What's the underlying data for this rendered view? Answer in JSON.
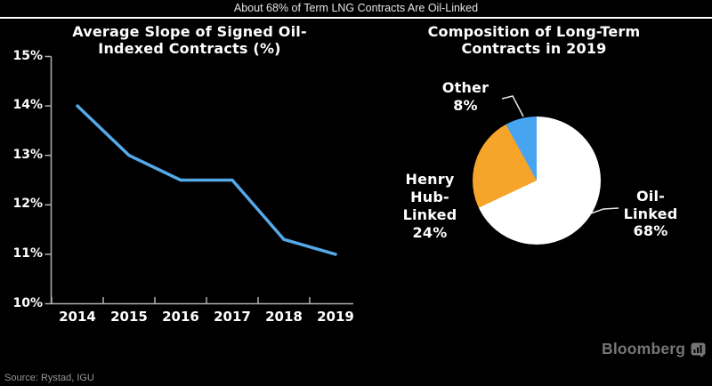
{
  "header": {
    "title": "About 68% of Term LNG Contracts Are Oil-Linked"
  },
  "source": {
    "label": "Source: Rystad, IGU"
  },
  "branding": {
    "logo_text": "Bloomberg"
  },
  "colors": {
    "background": "#000000",
    "line_series": "#55a9e8",
    "axis": "#b0b0b0",
    "leader_line": "#e8e8e8",
    "pie_oil": "#ffffff",
    "pie_henry": "#f7a52a",
    "pie_other": "#47a4f1"
  },
  "chart_data": [
    {
      "type": "line",
      "title": "Average Slope of Signed Oil-\nIndexed Contracts (%)",
      "x": [
        "2014",
        "2015",
        "2016",
        "2017",
        "2018",
        "2019"
      ],
      "values": [
        14.0,
        13.0,
        12.5,
        12.5,
        11.3,
        11.0
      ],
      "ylim": [
        10,
        15
      ],
      "ytick_labels": [
        "10%",
        "11%",
        "12%",
        "13%",
        "14%",
        "15%"
      ],
      "xlabel": "",
      "ylabel": "",
      "grid": false,
      "legend": "none",
      "line_color": "#55a9e8"
    },
    {
      "type": "pie",
      "title": "Composition of Long-Term\nContracts in 2019",
      "direction": "clockwise",
      "start_angle_deg": 0,
      "slices": [
        {
          "name": "Oil-Linked",
          "value": 68,
          "color": "#ffffff",
          "label": "Oil-\nLinked\n68%"
        },
        {
          "name": "Henry Hub-Linked",
          "value": 24,
          "color": "#f7a52a",
          "label": "Henry\nHub-\nLinked\n24%"
        },
        {
          "name": "Other",
          "value": 8,
          "color": "#47a4f1",
          "label": "Other\n8%"
        }
      ]
    }
  ]
}
